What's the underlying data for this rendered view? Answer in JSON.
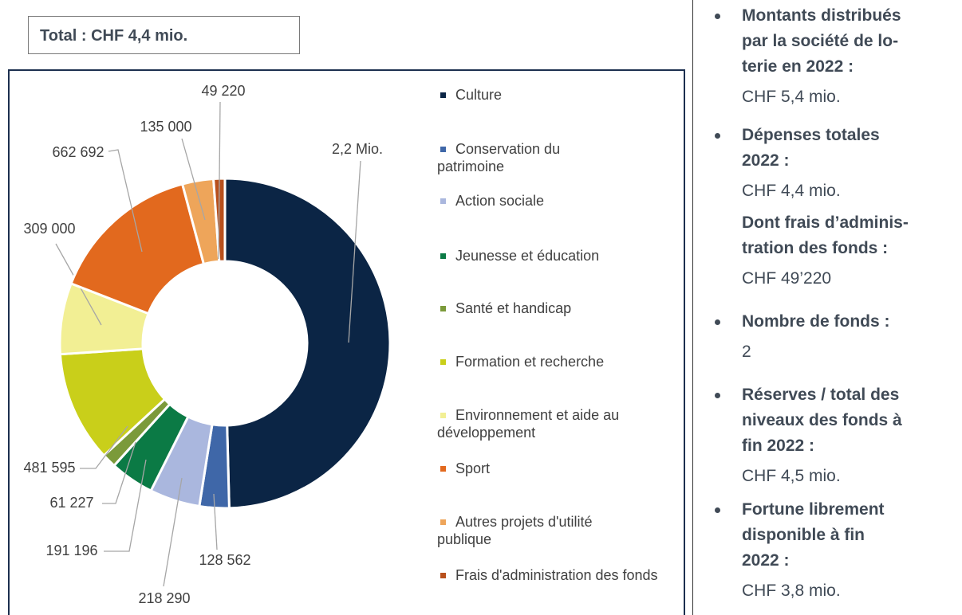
{
  "chart_data": {
    "type": "donut",
    "title": "Total : CHF 4,4 mio.",
    "categories": [
      "Culture",
      "Conservation du patrimoine",
      "Action sociale",
      "Jeunesse et éducation",
      "Santé et handicap",
      "Formation et recherche",
      "Environnement et aide au développement",
      "Sport",
      "Autres projets d'utilité publique",
      "Frais d'administration des fonds"
    ],
    "values": [
      2200000,
      128562,
      218290,
      191196,
      61227,
      481595,
      309000,
      662692,
      135000,
      49220
    ],
    "value_labels": [
      "2,2 Mio.",
      "128 562",
      "218 290",
      "191 196",
      "61 227",
      "481 595",
      "309 000",
      "662 692",
      "135 000",
      "49 220"
    ],
    "colors": [
      "#0b2545",
      "#3f67a8",
      "#aab7de",
      "#0b7a45",
      "#7b9a3a",
      "#c9cf1a",
      "#f2ef94",
      "#e2691e",
      "#eea55a",
      "#b8501c"
    ]
  },
  "sidebar": [
    {
      "heading": [
        "Montants distribués",
        "par la société de lo-",
        "terie en 2022 :"
      ],
      "value": "CHF 5,4 mio."
    },
    {
      "heading": [
        "Dépenses totales",
        "2022 :"
      ],
      "value": "CHF 4,4 mio.",
      "sub_heading": [
        "Dont frais d’adminis-",
        "tration des fonds :"
      ],
      "sub_value": "CHF 49’220"
    },
    {
      "heading": [
        "Nombre de fonds :"
      ],
      "value": "2"
    },
    {
      "heading": [
        "Réserves / total des",
        "niveaux des fonds à",
        "fin 2022 :"
      ],
      "value": "CHF 4,5 mio."
    },
    {
      "heading": [
        "Fortune librement",
        "disponible à fin",
        "2022 :"
      ],
      "value": "CHF 3,8 mio."
    }
  ]
}
